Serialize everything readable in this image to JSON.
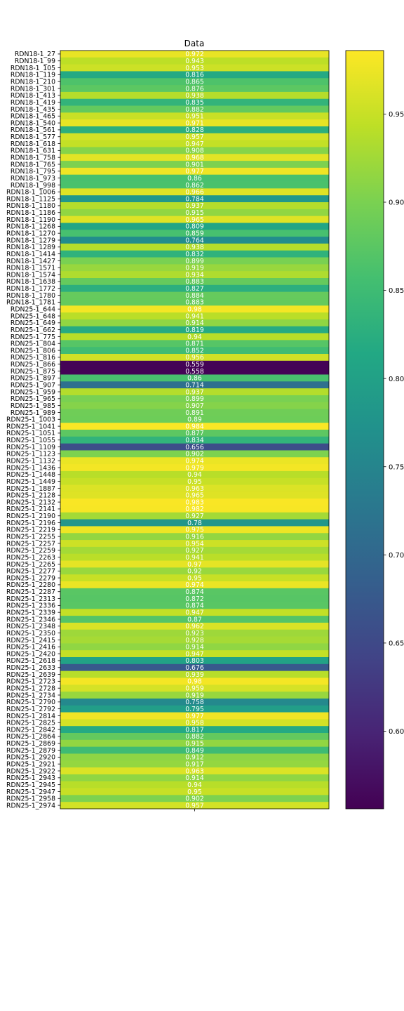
{
  "chart_data": {
    "type": "heatmap",
    "title": "Data",
    "colormap": "viridis",
    "rows": [
      "RDN18-1_27",
      "RDN18-1_99",
      "RDN18-1_105",
      "RDN18-1_119",
      "RDN18-1_210",
      "RDN18-1_301",
      "RDN18-1_413",
      "RDN18-1_419",
      "RDN18-1_435",
      "RDN18-1_465",
      "RDN18-1_540",
      "RDN18-1_561",
      "RDN18-1_577",
      "RDN18-1_618",
      "RDN18-1_631",
      "RDN18-1_758",
      "RDN18-1_765",
      "RDN18-1_795",
      "RDN18-1_973",
      "RDN18-1_998",
      "RDN18-1_1006",
      "RDN18-1_1125",
      "RDN18-1_1180",
      "RDN18-1_1186",
      "RDN18-1_1190",
      "RDN18-1_1268",
      "RDN18-1_1270",
      "RDN18-1_1279",
      "RDN18-1_1289",
      "RDN18-1_1414",
      "RDN18-1_1427",
      "RDN18-1_1571",
      "RDN18-1_1574",
      "RDN18-1_1638",
      "RDN18-1_1772",
      "RDN18-1_1780",
      "RDN18-1_1781",
      "RDN25-1_644",
      "RDN25-1_648",
      "RDN25-1_649",
      "RDN25-1_662",
      "RDN25-1_775",
      "RDN25-1_804",
      "RDN25-1_806",
      "RDN25-1_816",
      "RDN25-1_866",
      "RDN25-1_875",
      "RDN25-1_897",
      "RDN25-1_907",
      "RDN25-1_959",
      "RDN25-1_965",
      "RDN25-1_985",
      "RDN25-1_989",
      "RDN25-1_1003",
      "RDN25-1_1041",
      "RDN25-1_1051",
      "RDN25-1_1055",
      "RDN25-1_1109",
      "RDN25-1_1123",
      "RDN25-1_1132",
      "RDN25-1_1436",
      "RDN25-1_1448",
      "RDN25-1_1449",
      "RDN25-1_1887",
      "RDN25-1_2128",
      "RDN25-1_2132",
      "RDN25-1_2141",
      "RDN25-1_2190",
      "RDN25-1_2196",
      "RDN25-1_2219",
      "RDN25-1_2255",
      "RDN25-1_2257",
      "RDN25-1_2259",
      "RDN25-1_2263",
      "RDN25-1_2265",
      "RDN25-1_2277",
      "RDN25-1_2279",
      "RDN25-1_2280",
      "RDN25-1_2287",
      "RDN25-1_2313",
      "RDN25-1_2336",
      "RDN25-1_2339",
      "RDN25-1_2346",
      "RDN25-1_2348",
      "RDN25-1_2350",
      "RDN25-1_2415",
      "RDN25-1_2416",
      "RDN25-1_2420",
      "RDN25-1_2618",
      "RDN25-1_2633",
      "RDN25-1_2639",
      "RDN25-1_2723",
      "RDN25-1_2728",
      "RDN25-1_2734",
      "RDN25-1_2790",
      "RDN25-1_2792",
      "RDN25-1_2814",
      "RDN25-1_2825",
      "RDN25-1_2842",
      "RDN25-1_2864",
      "RDN25-1_2869",
      "RDN25-1_2879",
      "RDN25-1_2920",
      "RDN25-1_2921",
      "RDN25-1_2922",
      "RDN25-1_2943",
      "RDN25-1_2945",
      "RDN25-1_2947",
      "RDN25-1_2958",
      "RDN25-1_2974"
    ],
    "values": [
      0.972,
      0.943,
      0.953,
      0.816,
      0.865,
      0.876,
      0.938,
      0.835,
      0.882,
      0.951,
      0.971,
      0.828,
      0.957,
      0.947,
      0.908,
      0.968,
      0.901,
      0.977,
      0.86,
      0.862,
      0.966,
      0.784,
      0.937,
      0.915,
      0.965,
      0.809,
      0.859,
      0.764,
      0.938,
      0.832,
      0.899,
      0.919,
      0.934,
      0.883,
      0.827,
      0.884,
      0.883,
      0.98,
      0.941,
      0.914,
      0.819,
      0.94,
      0.871,
      0.852,
      0.956,
      0.559,
      0.558,
      0.86,
      0.714,
      0.937,
      0.899,
      0.907,
      0.891,
      0.89,
      0.984,
      0.877,
      0.834,
      0.656,
      0.902,
      0.974,
      0.979,
      0.94,
      0.95,
      0.963,
      0.965,
      0.983,
      0.982,
      0.927,
      0.78,
      0.975,
      0.916,
      0.954,
      0.927,
      0.941,
      0.97,
      0.92,
      0.95,
      0.974,
      0.874,
      0.872,
      0.874,
      0.947,
      0.87,
      0.962,
      0.923,
      0.928,
      0.914,
      0.947,
      0.803,
      0.676,
      0.939,
      0.98,
      0.959,
      0.919,
      0.758,
      0.795,
      0.977,
      0.958,
      0.817,
      0.882,
      0.915,
      0.849,
      0.912,
      0.917,
      0.963,
      0.914,
      0.94,
      0.95,
      0.902,
      0.957
    ],
    "value_labels": [
      "0.972",
      "0.943",
      "0.953",
      "0.816",
      "0.865",
      "0.876",
      "0.938",
      "0.835",
      "0.882",
      "0.951",
      "0.971",
      "0.828",
      "0.957",
      "0.947",
      "0.908",
      "0.968",
      "0.901",
      "0.977",
      "0.86",
      "0.862",
      "0.966",
      "0.784",
      "0.937",
      "0.915",
      "0.965",
      "0.809",
      "0.859",
      "0.764",
      "0.938",
      "0.832",
      "0.899",
      "0.919",
      "0.934",
      "0.883",
      "0.827",
      "0.884",
      "0.883",
      "0.98",
      "0.941",
      "0.914",
      "0.819",
      "0.94",
      "0.871",
      "0.852",
      "0.956",
      "0.559",
      "0.558",
      "0.86",
      "0.714",
      "0.937",
      "0.899",
      "0.907",
      "0.891",
      "0.89",
      "0.984",
      "0.877",
      "0.834",
      "0.656",
      "0.902",
      "0.974",
      "0.979",
      "0.94",
      "0.95",
      "0.963",
      "0.965",
      "0.983",
      "0.982",
      "0.927",
      "0.78",
      "0.975",
      "0.916",
      "0.954",
      "0.927",
      "0.941",
      "0.97",
      "0.92",
      "0.95",
      "0.974",
      "0.874",
      "0.872",
      "0.874",
      "0.947",
      "0.87",
      "0.962",
      "0.923",
      "0.928",
      "0.914",
      "0.947",
      "0.803",
      "0.676",
      "0.939",
      "0.98",
      "0.959",
      "0.919",
      "0.758",
      "0.795",
      "0.977",
      "0.958",
      "0.817",
      "0.882",
      "0.915",
      "0.849",
      "0.912",
      "0.917",
      "0.963",
      "0.914",
      "0.94",
      "0.95",
      "0.902",
      "0.957"
    ],
    "colorbar": {
      "range": [
        0.556,
        0.986
      ],
      "ticks": [
        0.6,
        0.65,
        0.7,
        0.75,
        0.8,
        0.85,
        0.9,
        0.95
      ],
      "tick_labels": [
        "0.60",
        "0.65",
        "0.70",
        "0.75",
        "0.80",
        "0.85",
        "0.90",
        "0.95"
      ]
    },
    "grid": false,
    "legend": "colorbar-right"
  }
}
